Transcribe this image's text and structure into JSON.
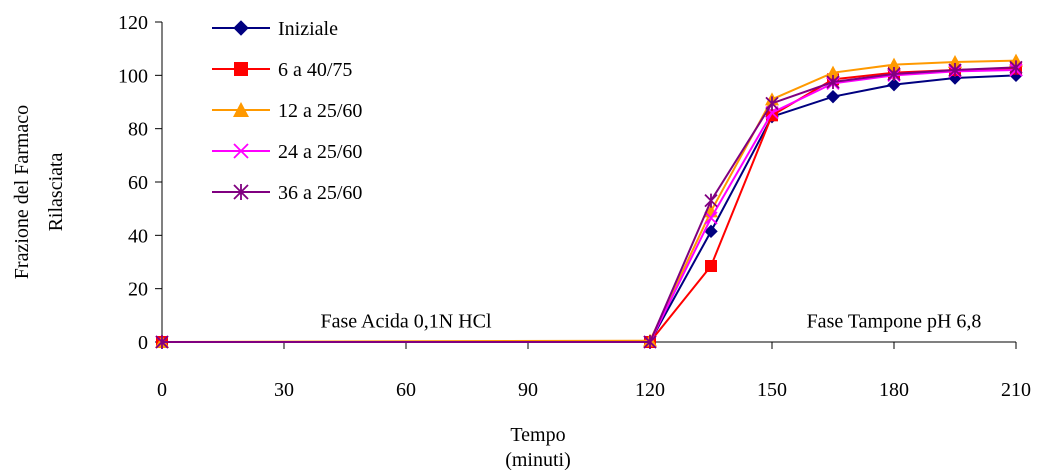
{
  "chart_data": {
    "type": "line",
    "title": "",
    "xlabel_lines": [
      "Tempo",
      "(minuti)"
    ],
    "ylabel_lines": [
      "Frazione del Farmaco",
      "Rilasciata"
    ],
    "xlim": [
      0,
      210
    ],
    "ylim": [
      0,
      120
    ],
    "x_ticks": [
      0,
      30,
      60,
      90,
      120,
      150,
      180,
      210
    ],
    "y_ticks": [
      0,
      20,
      40,
      60,
      80,
      100,
      120
    ],
    "grid": false,
    "legend_position": "top-left",
    "annotations": [
      {
        "text": "Fase Acida 0,1N HCl",
        "x": 60,
        "y": 4
      },
      {
        "text": "Fase Tampone pH 6,8",
        "x": 180,
        "y": 4
      }
    ],
    "x": [
      0,
      120,
      135,
      150,
      165,
      180,
      195,
      210
    ],
    "series": [
      {
        "name": "Iniziale",
        "color": "#000080",
        "marker": "diamond",
        "values": [
          0,
          0,
          41.5,
          84.5,
          92,
          96.5,
          99,
          100
        ]
      },
      {
        "name": "6 a 40/75",
        "color": "#ff0000",
        "marker": "square",
        "values": [
          0,
          0,
          28.5,
          85,
          98.5,
          101,
          102,
          102.5
        ]
      },
      {
        "name": "12 a 25/60",
        "color": "#ff9900",
        "marker": "triangle",
        "values": [
          0,
          0.5,
          49,
          91,
          101,
          104,
          105,
          105.5
        ]
      },
      {
        "name": "24 a 25/60",
        "color": "#ff00ff",
        "marker": "x",
        "values": [
          0,
          0,
          46.5,
          86,
          97,
          100,
          101.5,
          102
        ]
      },
      {
        "name": "36 a 25/60",
        "color": "#800080",
        "marker": "star",
        "values": [
          0,
          0,
          53,
          89.5,
          97.5,
          100.5,
          102,
          103
        ]
      }
    ]
  }
}
